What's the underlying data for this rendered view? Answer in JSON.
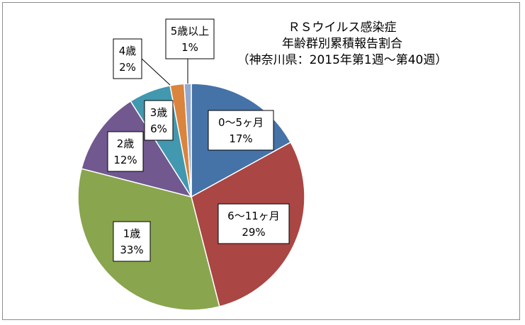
{
  "chart_data": {
    "type": "pie",
    "title_lines": [
      "ＲＳウイルス感染症",
      "年齢群別累積報告割合",
      "（神奈川県：2015年第1週～第40週）"
    ],
    "slices": [
      {
        "label": "0～5ヶ月",
        "value": 17,
        "display": "17%",
        "color": "#4572A7"
      },
      {
        "label": "6～11ヶ月",
        "value": 29,
        "display": "29%",
        "color": "#AA4643"
      },
      {
        "label": "1歳",
        "value": 33,
        "display": "33%",
        "color": "#89A54E"
      },
      {
        "label": "2歳",
        "value": 12,
        "display": "12%",
        "color": "#71588F"
      },
      {
        "label": "3歳",
        "value": 6,
        "display": "6%",
        "color": "#4198AF"
      },
      {
        "label": "4歳",
        "value": 2,
        "display": "2%",
        "color": "#DB843D"
      },
      {
        "label": "5歳以上",
        "value": 1,
        "display": "1%",
        "color": "#93A9CF"
      }
    ],
    "legend": "none",
    "start_angle": "12 o'clock, clockwise"
  }
}
